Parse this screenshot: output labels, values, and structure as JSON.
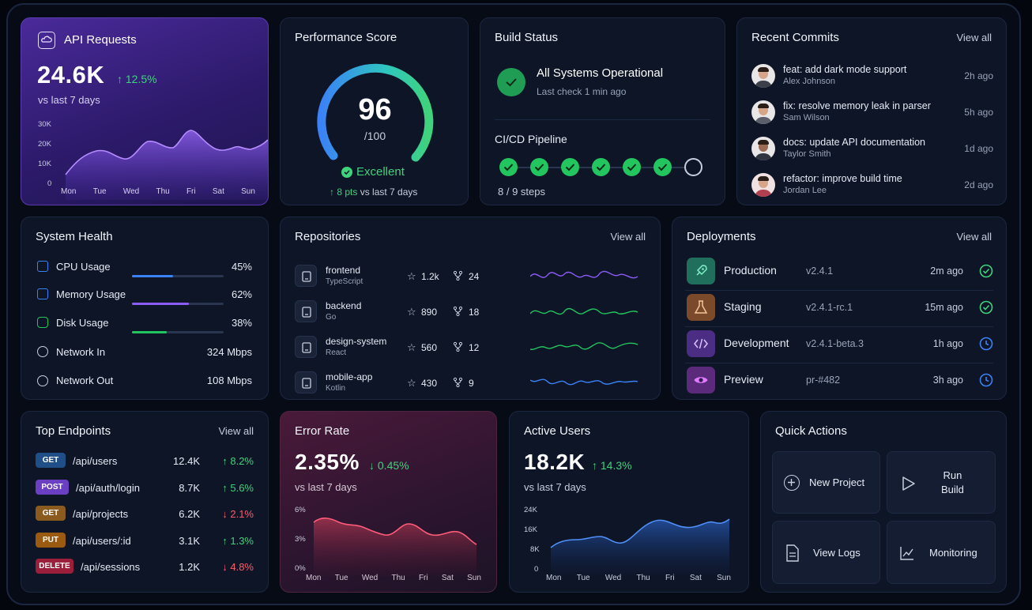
{
  "api_requests": {
    "title": "API Requests",
    "value": "24.6K",
    "change": "↑ 12.5%",
    "subtitle": "vs last 7 days",
    "y_ticks": [
      "30K",
      "20K",
      "10K",
      "0"
    ],
    "days": [
      "Mon",
      "Tue",
      "Wed",
      "Thu",
      "Fri",
      "Sat",
      "Sun"
    ]
  },
  "performance": {
    "title": "Performance Score",
    "score": "96",
    "max": "/100",
    "rating": "Excellent",
    "change": "↑ 8 pts",
    "change_suffix": "vs last 7 days",
    "score_fraction": 0.96
  },
  "build_status": {
    "title": "Build Status",
    "status": "All Systems Operational",
    "last_check": "Last check 1 min ago",
    "pipeline_title": "CI/CD Pipeline",
    "steps_done": 8,
    "steps_total": 9,
    "steps_label": "8 / 9 steps"
  },
  "recent_commits": {
    "title": "Recent Commits",
    "view_all": "View all",
    "items": [
      {
        "message": "feat: add dark mode support",
        "author": "Alex Johnson",
        "time": "2h ago"
      },
      {
        "message": "fix: resolve memory leak in parser",
        "author": "Sam Wilson",
        "time": "5h ago"
      },
      {
        "message": "docs: update API documentation",
        "author": "Taylor Smith",
        "time": "1d ago"
      },
      {
        "message": "refactor: improve build time",
        "author": "Jordan Lee",
        "time": "2d ago"
      }
    ]
  },
  "system_health": {
    "title": "System Health",
    "items": [
      {
        "label": "CPU Usage",
        "value": "45%",
        "level": 0.45,
        "color": "#3b82f6"
      },
      {
        "label": "Memory Usage",
        "value": "62%",
        "level": 0.62,
        "color": "#8b5cf6"
      },
      {
        "label": "Disk Usage",
        "value": "38%",
        "level": 0.38,
        "color": "#22c55e"
      },
      {
        "label": "Network In",
        "value": "324 Mbps"
      },
      {
        "label": "Network Out",
        "value": "108 Mbps"
      }
    ]
  },
  "repositories": {
    "title": "Repositories",
    "view_all": "View all",
    "items": [
      {
        "name": "frontend",
        "lang": "TypeScript",
        "stars": "1.2k",
        "forks": "24",
        "color": "#8b5cf6"
      },
      {
        "name": "backend",
        "lang": "Go",
        "stars": "890",
        "forks": "18",
        "color": "#22c55e"
      },
      {
        "name": "design-system",
        "lang": "React",
        "stars": "560",
        "forks": "12",
        "color": "#22c55e"
      },
      {
        "name": "mobile-app",
        "lang": "Kotlin",
        "stars": "430",
        "forks": "9",
        "color": "#3b82f6"
      }
    ]
  },
  "deployments": {
    "title": "Deployments",
    "view_all": "View all",
    "items": [
      {
        "env": "Production",
        "version": "v2.4.1",
        "time": "2m ago",
        "status": "success",
        "icon": "rocket-icon",
        "color": "#1f6f5c"
      },
      {
        "env": "Staging",
        "version": "v2.4.1-rc.1",
        "time": "15m ago",
        "status": "success",
        "icon": "flask-icon",
        "color": "#7a4a2a"
      },
      {
        "env": "Development",
        "version": "v2.4.1-beta.3",
        "time": "1h ago",
        "status": "pending",
        "icon": "code-icon",
        "color": "#4b2e84"
      },
      {
        "env": "Preview",
        "version": "pr-#482",
        "time": "3h ago",
        "status": "pending",
        "icon": "eye-icon",
        "color": "#5b2a7a"
      }
    ]
  },
  "top_endpoints": {
    "title": "Top Endpoints",
    "view_all": "View all",
    "items": [
      {
        "method": "GET",
        "path": "/api/users",
        "count": "12.4K",
        "change": "↑ 8.2%",
        "dir": "up",
        "color": "#1f4f86"
      },
      {
        "method": "POST",
        "path": "/api/auth/login",
        "count": "8.7K",
        "change": "↑ 5.6%",
        "dir": "up",
        "color": "#6b3fc1"
      },
      {
        "method": "GET",
        "path": "/api/projects",
        "count": "6.2K",
        "change": "↓ 2.1%",
        "dir": "down",
        "color": "#8a5a1f"
      },
      {
        "method": "PUT",
        "path": "/api/users/:id",
        "count": "3.1K",
        "change": "↑ 1.3%",
        "dir": "up",
        "color": "#9a5a10"
      },
      {
        "method": "DELETE",
        "path": "/api/sessions",
        "count": "1.2K",
        "change": "↓ 4.8%",
        "dir": "down",
        "color": "#9b1f3a"
      }
    ]
  },
  "error_rate": {
    "title": "Error Rate",
    "value": "2.35%",
    "change": "↓ 0.45%",
    "subtitle": "vs last 7 days",
    "y_ticks": [
      "6%",
      "3%",
      "0%"
    ],
    "days": [
      "Mon",
      "Tue",
      "Wed",
      "Thu",
      "Fri",
      "Sat",
      "Sun"
    ]
  },
  "active_users": {
    "title": "Active Users",
    "value": "18.2K",
    "change": "↑ 14.3%",
    "subtitle": "vs last 7 days",
    "y_ticks": [
      "24K",
      "16K",
      "8K",
      "0"
    ],
    "days": [
      "Mon",
      "Tue",
      "Wed",
      "Thu",
      "Fri",
      "Sat",
      "Sun"
    ]
  },
  "quick_actions": {
    "title": "Quick Actions",
    "new_project": "New Project",
    "run_build_1": "Run",
    "run_build_2": "Build",
    "view_logs": "View Logs",
    "monitoring": "Monitoring"
  }
}
